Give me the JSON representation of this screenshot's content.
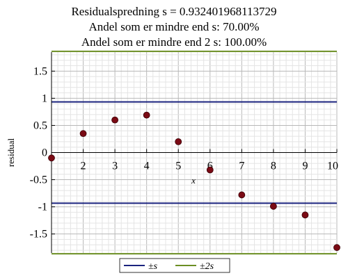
{
  "chart_data": {
    "type": "scatter",
    "title_lines": [
      "Residualspredning s = 0.932401968113729",
      "Andel som er mindre end s: 70.00%",
      "Andel som er mindre end 2 s: 100.00%"
    ],
    "xlabel": "x",
    "ylabel": "residual",
    "xlim": [
      1,
      10
    ],
    "ylim": [
      -1.85,
      1.85
    ],
    "x_ticks": [
      2,
      3,
      4,
      5,
      6,
      7,
      8,
      9,
      10
    ],
    "y_ticks": [
      -1.5,
      -1,
      -0.5,
      0,
      0.5,
      1,
      1.5
    ],
    "x_tick_labels": [
      "2",
      "3",
      "4",
      "5",
      "6",
      "7",
      "8",
      "9",
      "10"
    ],
    "y_tick_labels": [
      "-1.5",
      "-1",
      "-0.5",
      "0",
      "0.5",
      "1",
      "1.5"
    ],
    "grid": true,
    "points": {
      "x": [
        1,
        2,
        3,
        4,
        5,
        6,
        7,
        8,
        9,
        10
      ],
      "y": [
        -0.1,
        0.35,
        0.6,
        0.69,
        0.2,
        -0.32,
        -0.78,
        -0.99,
        -1.15,
        -1.75
      ],
      "color": "#7a0a14"
    },
    "hlines": [
      {
        "name": "±s",
        "value": 0.932401968113729,
        "color": "#1a237e",
        "mirror": true
      },
      {
        "name": "±2s",
        "value": 1.864803936227458,
        "color": "#6b8e23",
        "mirror": true
      }
    ],
    "legend": {
      "placement": "bottom",
      "entries": [
        {
          "label": "±s",
          "color": "#1a237e"
        },
        {
          "label": "±2s",
          "color": "#6b8e23"
        }
      ]
    }
  }
}
